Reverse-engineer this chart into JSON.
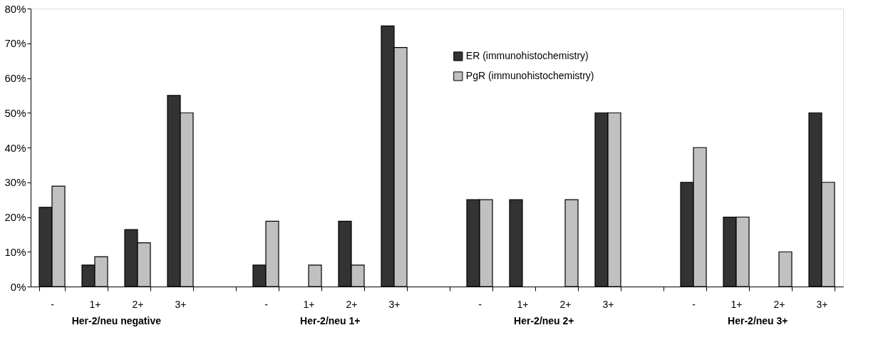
{
  "chart_data": {
    "type": "bar",
    "categories": [
      "-",
      "1+",
      "2+",
      "3+",
      null,
      "-",
      "1+",
      "2+",
      "3+",
      null,
      "-",
      "1+",
      "2+",
      "3+",
      null,
      "-",
      "1+",
      "2+",
      "3+"
    ],
    "series": [
      {
        "name": "ER (immunohistochemistry)",
        "color": "#333333",
        "values": [
          22.8,
          6.2,
          16.4,
          55,
          null,
          6.2,
          null,
          18.8,
          75,
          null,
          25,
          25,
          null,
          50,
          null,
          30,
          20,
          null,
          50
        ]
      },
      {
        "name": "PgR (immunohistochemistry)",
        "color": "#c0c0c0",
        "values": [
          28.9,
          8.6,
          12.6,
          50,
          null,
          18.8,
          6.2,
          6.2,
          68.8,
          null,
          25,
          null,
          25,
          50,
          null,
          40,
          20,
          10,
          30
        ]
      }
    ],
    "annotations": [
      "Her-2/neu negative",
      "Her-2/neu 1+",
      "Her-2/neu 2+",
      "Her-2/neu 3+"
    ],
    "ylim": [
      0,
      80
    ],
    "yticks": [
      {
        "value": 0,
        "label": "0%"
      },
      {
        "value": 10,
        "label": "10%"
      },
      {
        "value": 20,
        "label": "20%"
      },
      {
        "value": 30,
        "label": "30%"
      },
      {
        "value": 40,
        "label": "40%"
      },
      {
        "value": 50,
        "label": "50%"
      },
      {
        "value": 60,
        "label": "60%"
      },
      {
        "value": 70,
        "label": "70%"
      },
      {
        "value": 80,
        "label": "80%"
      }
    ],
    "grid": false,
    "legend": "top right"
  }
}
